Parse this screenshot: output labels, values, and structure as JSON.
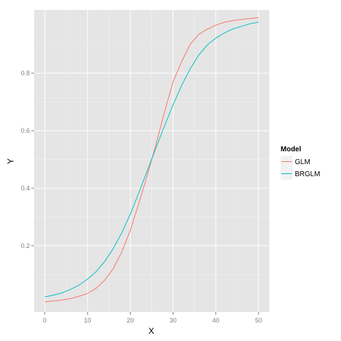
{
  "chart_data": {
    "type": "line",
    "xlabel": "X",
    "ylabel": "Y",
    "xlim": [
      -2.5,
      52.5
    ],
    "ylim": [
      -0.03,
      1.02
    ],
    "x_ticks": [
      0,
      10,
      20,
      30,
      40,
      50
    ],
    "x_tick_labels": [
      "0",
      "10",
      "20",
      "30",
      "40",
      "50"
    ],
    "y_ticks": [
      0.2,
      0.4,
      0.6,
      0.8
    ],
    "y_tick_labels": [
      "0.2",
      "0.4",
      "0.6",
      "0.8"
    ],
    "grid": true,
    "panel_background": "#E5E5E5",
    "legend": {
      "title": "Model",
      "position": "right"
    },
    "x": [
      0,
      2,
      4,
      6,
      8,
      10,
      12,
      14,
      16,
      18,
      20,
      22,
      24,
      26,
      28,
      30,
      32,
      34,
      36,
      38,
      40,
      42,
      44,
      46,
      48,
      50
    ],
    "series": [
      {
        "name": "GLM",
        "color": "#F8766D",
        "values": [
          0.005,
          0.008,
          0.011,
          0.016,
          0.024,
          0.034,
          0.052,
          0.08,
          0.12,
          0.178,
          0.254,
          0.347,
          0.447,
          0.552,
          0.665,
          0.77,
          0.84,
          0.9,
          0.935,
          0.953,
          0.967,
          0.977,
          0.983,
          0.987,
          0.99,
          0.993
        ]
      },
      {
        "name": "BRGLM",
        "color": "#00BFC4",
        "values": [
          0.022,
          0.028,
          0.036,
          0.048,
          0.063,
          0.084,
          0.11,
          0.145,
          0.19,
          0.245,
          0.31,
          0.384,
          0.462,
          0.54,
          0.617,
          0.69,
          0.757,
          0.815,
          0.863,
          0.898,
          0.922,
          0.94,
          0.954,
          0.963,
          0.972,
          0.978
        ]
      }
    ]
  }
}
